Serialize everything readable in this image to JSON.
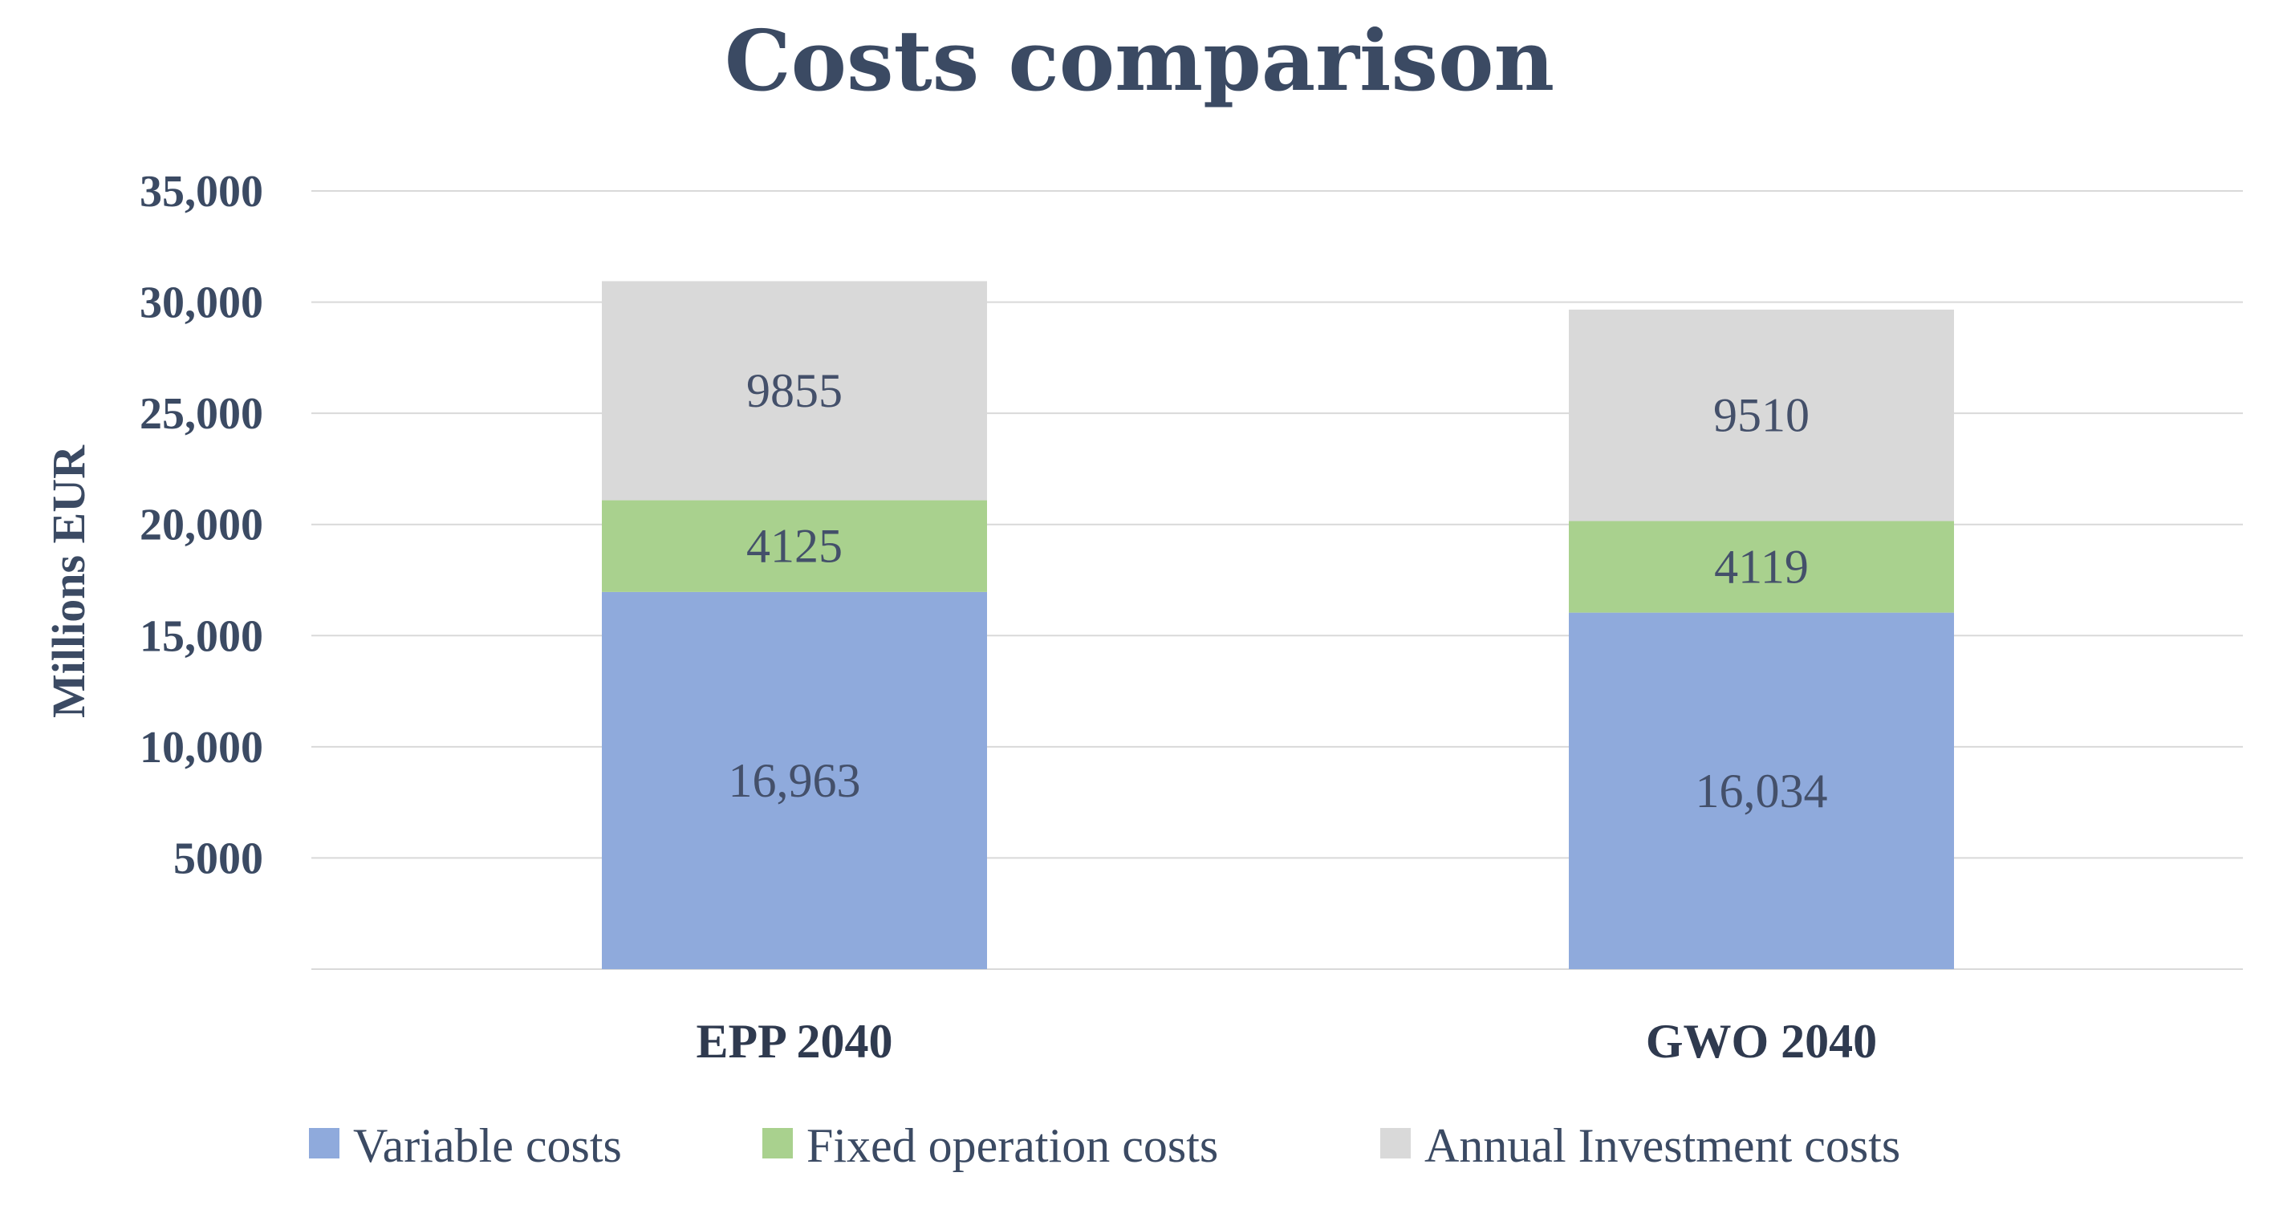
{
  "chart_data": {
    "type": "bar",
    "stacked": true,
    "title": "Costs comparison",
    "xlabel": "",
    "ylabel": "Millions EUR",
    "ylim": [
      0,
      35000
    ],
    "yticks": [
      5000,
      10000,
      15000,
      20000,
      25000,
      30000,
      35000
    ],
    "ytick_labels": [
      "5000",
      "10,000",
      "15,000",
      "20,000",
      "25,000",
      "30,000",
      "35,000"
    ],
    "grid": true,
    "legend_position": "bottom",
    "categories": [
      "EPP 2040",
      "GWO 2040"
    ],
    "series": [
      {
        "name": "Variable costs",
        "color": "#8faadc",
        "values": [
          16963,
          16034
        ],
        "labels": [
          "16,963",
          "16,034"
        ]
      },
      {
        "name": "Fixed operation costs",
        "color": "#a9d18e",
        "values": [
          4125,
          4119
        ],
        "labels": [
          "4125",
          "4119"
        ]
      },
      {
        "name": "Annual Investment costs",
        "color": "#d9d9d9",
        "values": [
          9855,
          9510
        ],
        "labels": [
          "9855",
          "9510"
        ]
      }
    ]
  }
}
